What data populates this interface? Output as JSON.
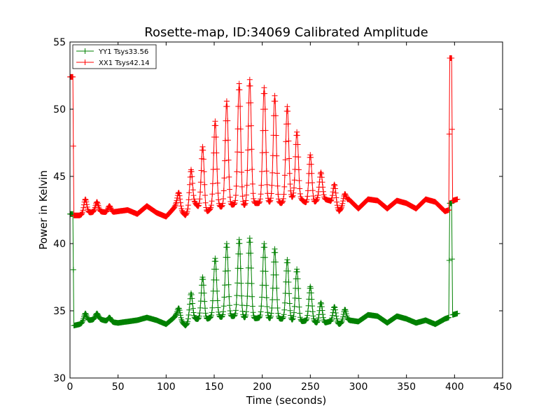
{
  "chart_data": {
    "type": "line",
    "title": "Rosette-map, ID:34069 Calibrated Amplitude",
    "xlabel": "Time (seconds)",
    "ylabel": "Power in Kelvin",
    "xlim": [
      0,
      450
    ],
    "ylim": [
      30,
      55
    ],
    "xticks": [
      0,
      50,
      100,
      150,
      200,
      250,
      300,
      350,
      400,
      450
    ],
    "yticks": [
      30,
      35,
      40,
      45,
      50,
      55
    ],
    "grid": false,
    "legend_position": "top-left",
    "marker": "plus",
    "series": [
      {
        "name": "YY1 Tsys33.56",
        "color": "#008000",
        "baseline": [
          [
            0,
            42.2
          ],
          [
            3,
            42.2
          ],
          [
            4,
            33.9
          ],
          [
            10,
            34.0
          ],
          [
            20,
            34.3
          ],
          [
            30,
            34.4
          ],
          [
            40,
            34.2
          ],
          [
            50,
            34.1
          ],
          [
            60,
            34.2
          ],
          [
            70,
            34.3
          ],
          [
            80,
            34.5
          ],
          [
            90,
            34.3
          ],
          [
            100,
            34.0
          ],
          [
            110,
            34.6
          ],
          [
            120,
            33.9
          ],
          [
            130,
            34.4
          ],
          [
            140,
            34.3
          ],
          [
            150,
            34.6
          ],
          [
            160,
            34.5
          ],
          [
            170,
            34.6
          ],
          [
            180,
            34.5
          ],
          [
            190,
            34.4
          ],
          [
            200,
            34.5
          ],
          [
            210,
            34.4
          ],
          [
            220,
            34.4
          ],
          [
            230,
            34.3
          ],
          [
            240,
            34.2
          ],
          [
            250,
            34.3
          ],
          [
            260,
            34.0
          ],
          [
            270,
            34.2
          ],
          [
            280,
            34.0
          ],
          [
            290,
            34.3
          ],
          [
            300,
            34.2
          ],
          [
            310,
            34.7
          ],
          [
            320,
            34.6
          ],
          [
            330,
            34.1
          ],
          [
            340,
            34.6
          ],
          [
            350,
            34.4
          ],
          [
            360,
            34.1
          ],
          [
            370,
            34.3
          ],
          [
            380,
            34.0
          ],
          [
            390,
            34.4
          ],
          [
            394,
            34.5
          ],
          [
            395,
            43.0
          ],
          [
            397,
            43.0
          ],
          [
            398,
            34.7
          ],
          [
            403,
            34.8
          ]
        ],
        "peaks": [
          [
            16,
            34.8
          ],
          [
            28,
            34.8
          ],
          [
            41,
            34.5
          ],
          [
            113,
            35.2
          ],
          [
            126,
            36.3
          ],
          [
            138,
            37.5
          ],
          [
            151,
            38.9
          ],
          [
            163,
            40.0
          ],
          [
            176,
            40.3
          ],
          [
            187,
            40.4
          ],
          [
            202,
            40.0
          ],
          [
            213,
            39.6
          ],
          [
            226,
            38.8
          ],
          [
            236,
            38.1
          ],
          [
            250,
            36.8
          ],
          [
            261,
            35.6
          ],
          [
            275,
            35.3
          ],
          [
            286,
            35.1
          ]
        ],
        "peak_width": 2.2
      },
      {
        "name": "XX1 Tsys42.14",
        "color": "#ff0000",
        "baseline": [
          [
            0,
            52.4
          ],
          [
            3,
            52.4
          ],
          [
            4,
            42.1
          ],
          [
            10,
            42.1
          ],
          [
            20,
            42.3
          ],
          [
            30,
            42.4
          ],
          [
            40,
            42.3
          ],
          [
            50,
            42.4
          ],
          [
            60,
            42.5
          ],
          [
            70,
            42.2
          ],
          [
            80,
            42.8
          ],
          [
            90,
            42.3
          ],
          [
            100,
            42.0
          ],
          [
            110,
            42.8
          ],
          [
            120,
            42.1
          ],
          [
            130,
            43.0
          ],
          [
            140,
            42.2
          ],
          [
            150,
            42.8
          ],
          [
            160,
            42.7
          ],
          [
            170,
            42.9
          ],
          [
            180,
            42.8
          ],
          [
            190,
            43.0
          ],
          [
            200,
            43.0
          ],
          [
            210,
            43.1
          ],
          [
            220,
            43.0
          ],
          [
            230,
            43.4
          ],
          [
            240,
            43.3
          ],
          [
            250,
            42.8
          ],
          [
            260,
            43.4
          ],
          [
            270,
            43.2
          ],
          [
            280,
            42.4
          ],
          [
            290,
            43.3
          ],
          [
            300,
            42.6
          ],
          [
            310,
            43.3
          ],
          [
            320,
            43.2
          ],
          [
            330,
            42.6
          ],
          [
            340,
            43.2
          ],
          [
            350,
            43.0
          ],
          [
            360,
            42.6
          ],
          [
            370,
            43.3
          ],
          [
            380,
            43.1
          ],
          [
            390,
            42.4
          ],
          [
            394,
            42.5
          ],
          [
            395,
            53.8
          ],
          [
            397,
            53.8
          ],
          [
            398,
            43.2
          ],
          [
            403,
            43.3
          ]
        ],
        "peaks": [
          [
            16,
            43.3
          ],
          [
            28,
            43.1
          ],
          [
            41,
            42.8
          ],
          [
            113,
            43.8
          ],
          [
            126,
            45.5
          ],
          [
            138,
            47.2
          ],
          [
            151,
            49.1
          ],
          [
            163,
            50.6
          ],
          [
            176,
            51.9
          ],
          [
            187,
            52.2
          ],
          [
            202,
            51.6
          ],
          [
            213,
            51.0
          ],
          [
            226,
            50.2
          ],
          [
            236,
            48.3
          ],
          [
            250,
            46.6
          ],
          [
            261,
            45.3
          ],
          [
            275,
            44.4
          ],
          [
            286,
            43.7
          ]
        ],
        "peak_width": 2.2
      }
    ]
  }
}
